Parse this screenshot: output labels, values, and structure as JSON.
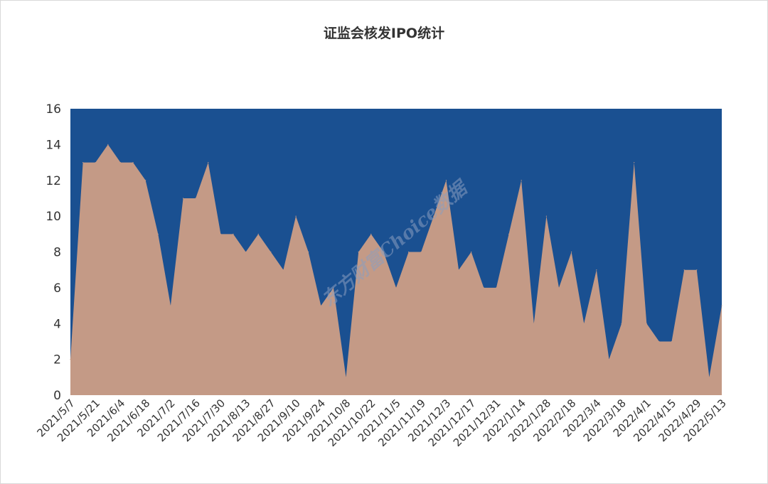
{
  "chart_data": {
    "type": "area",
    "title": "证监会核发IPO统计",
    "xlabel": "",
    "ylabel": "",
    "ylim": [
      0,
      16
    ],
    "yticks": [
      0,
      2,
      4,
      6,
      8,
      10,
      12,
      14,
      16
    ],
    "grid": false,
    "legend": "none",
    "x": [
      "2021/5/7",
      "2021/5/14",
      "2021/5/21",
      "2021/5/28",
      "2021/6/4",
      "2021/6/11",
      "2021/6/18",
      "2021/6/25",
      "2021/7/2",
      "2021/7/9",
      "2021/7/16",
      "2021/7/23",
      "2021/7/30",
      "2021/8/6",
      "2021/8/13",
      "2021/8/20",
      "2021/8/27",
      "2021/9/3",
      "2021/9/10",
      "2021/9/17",
      "2021/9/24",
      "2021/10/1",
      "2021/10/8",
      "2021/10/15",
      "2021/10/22",
      "2021/10/29",
      "2021/11/5",
      "2021/11/12",
      "2021/11/19",
      "2021/11/26",
      "2021/12/3",
      "2021/12/10",
      "2021/12/17",
      "2021/12/24",
      "2021/12/31",
      "2022/1/7",
      "2022/1/14",
      "2022/1/21",
      "2022/1/28",
      "2022/2/4",
      "2022/2/18",
      "2022/2/25",
      "2022/3/4",
      "2022/3/11",
      "2022/3/18",
      "2022/3/25",
      "2022/4/1",
      "2022/4/8",
      "2022/4/15",
      "2022/4/22",
      "2022/4/29",
      "2022/5/6",
      "2022/5/13"
    ],
    "xtick_labels": [
      "2021/5/7",
      "2021/5/21",
      "2021/6/4",
      "2021/6/18",
      "2021/7/2",
      "2021/7/16",
      "2021/7/30",
      "2021/8/13",
      "2021/8/27",
      "2021/9/10",
      "2021/9/24",
      "2021/10/8",
      "2021/10/22",
      "2021/11/5",
      "2021/11/19",
      "2021/12/3",
      "2021/12/17",
      "2021/12/31",
      "2022/1/14",
      "2022/1/28",
      "2022/2/18",
      "2022/3/4",
      "2022/3/18",
      "2022/4/1",
      "2022/4/15",
      "2022/4/29",
      "2022/5/13"
    ],
    "series": [
      {
        "color": "#c49a86",
        "values": [
          2,
          13,
          13,
          14,
          13,
          13,
          12,
          9,
          5,
          11,
          11,
          13,
          9,
          9,
          8,
          9,
          8,
          7,
          10,
          8,
          5,
          6,
          1,
          8,
          9,
          8,
          6,
          8,
          8,
          10,
          12,
          7,
          8,
          6,
          6,
          9,
          12,
          4,
          10,
          6,
          8,
          4,
          7,
          2,
          4,
          13,
          4,
          3,
          3,
          7,
          7,
          1,
          5
        ]
      }
    ],
    "background_color": "#1a5091"
  },
  "watermark": "东方财富Choice数据"
}
